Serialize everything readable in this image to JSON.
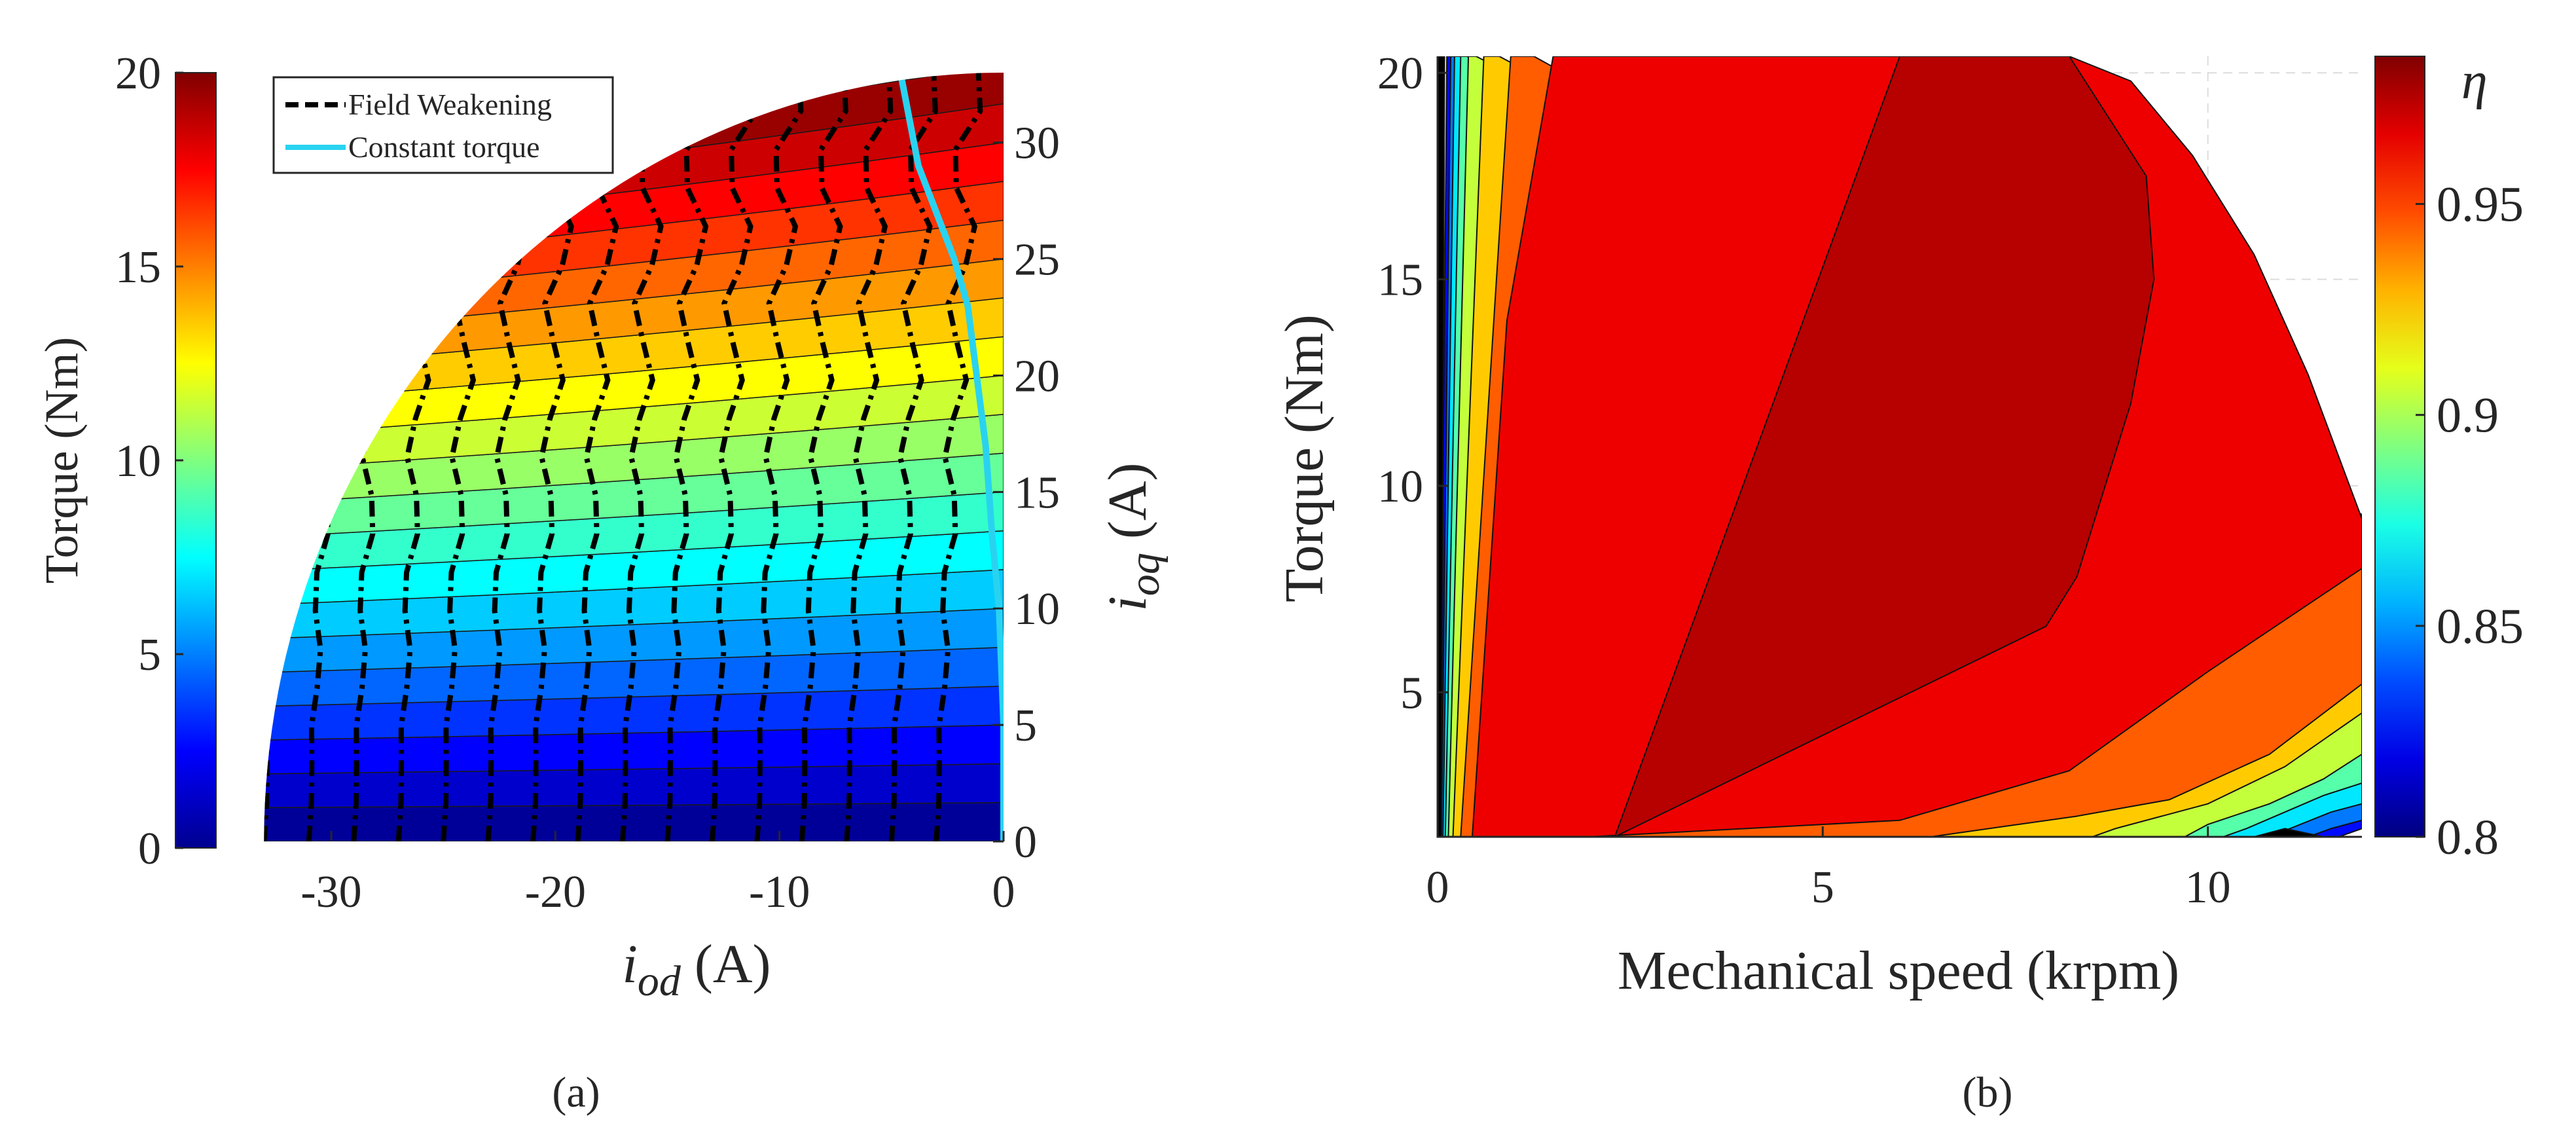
{
  "chart_data": [
    {
      "panel_label": "(a)",
      "type": "contour",
      "description_role": "iso-torque map in id-iq current plane",
      "xlabel_main": "i",
      "xlabel_sub": "od",
      "xlabel_unit": " (A)",
      "x_ticks": [
        "-30",
        "-20",
        "-10",
        "0"
      ],
      "x_tick_values": [
        -30,
        -20,
        -10,
        0
      ],
      "xlim": [
        -34.5,
        0
      ],
      "right_ylabel_main": "i",
      "right_ylabel_sub": "oq",
      "right_ylabel_unit": " (A)",
      "right_y_ticks": [
        "0",
        "5",
        "10",
        "15",
        "20",
        "25",
        "30"
      ],
      "right_y_tick_values": [
        0,
        5,
        10,
        15,
        20,
        25,
        30
      ],
      "ylim": [
        0,
        33
      ],
      "current_limit_A": 33,
      "colorbar_label": "Torque (Nm)",
      "colorbar_ticks": [
        "0",
        "5",
        "10",
        "15",
        "20"
      ],
      "colorbar_tick_values": [
        0,
        5,
        10,
        15,
        20
      ],
      "colorbar_range": [
        0,
        20
      ],
      "contour_levels": [
        0,
        1,
        2,
        3,
        4,
        5,
        6,
        7,
        8,
        9,
        10,
        11,
        12,
        13,
        14,
        15,
        16,
        17,
        18,
        19,
        20
      ],
      "torque_per_amp_q": 0.6,
      "legend": [
        {
          "label": "Field Weakening",
          "style": "dashed-black"
        },
        {
          "label": "Constant torque",
          "style": "solid-cyan"
        }
      ],
      "field_weakening_id_positions": [
        -33,
        -31,
        -29,
        -27,
        -25,
        -23,
        -21,
        -19,
        -17,
        -15,
        -13,
        -11,
        -9,
        -7,
        -5,
        -3
      ],
      "constant_torque_curve": {
        "id": [
          0,
          0,
          -0.2,
          -0.5,
          -0.8,
          -1.2,
          -1.6,
          -2.2,
          -3.0,
          -3.8,
          -4.6
        ],
        "iq": [
          0,
          5,
          10,
          13,
          17,
          20,
          23,
          25,
          27,
          29,
          33
        ]
      }
    },
    {
      "panel_label": "(b)",
      "type": "contour",
      "description_role": "efficiency map",
      "xlabel": "Mechanical speed (krpm)",
      "ylabel": "Torque (Nm)",
      "x_ticks": [
        "0",
        "5",
        "10"
      ],
      "x_tick_values": [
        0,
        5,
        10
      ],
      "xlim": [
        0,
        12
      ],
      "y_ticks": [
        "5",
        "10",
        "15",
        "20"
      ],
      "y_tick_values": [
        5,
        10,
        15,
        20
      ],
      "ylim": [
        1.5,
        20.4
      ],
      "colorbar_label": "η",
      "colorbar_ticks": [
        "0.8",
        "0.85",
        "0.9",
        "0.95"
      ],
      "colorbar_tick_values": [
        0.8,
        0.85,
        0.9,
        0.95
      ],
      "colorbar_range": [
        0.8,
        0.985
      ],
      "max_torque_envelope": {
        "speed_krpm": [
          0,
          6,
          8.2,
          9.0,
          9.8,
          10.6,
          11.3,
          12.0
        ],
        "torque_Nm": [
          20.4,
          20.4,
          20.4,
          19.8,
          18.0,
          15.6,
          12.7,
          9.2
        ]
      },
      "regions": [
        {
          "eta": 0.975,
          "speed_krpm": [
            2.3,
            6.0,
            8.2,
            9.2,
            9.3,
            9.0,
            8.3,
            7.9,
            2.3
          ],
          "torque_Nm": [
            1.5,
            20.4,
            20.4,
            17.5,
            15.0,
            12.0,
            7.8,
            6.6,
            1.5
          ]
        },
        {
          "eta": 0.965,
          "speed_krpm": [
            0.45,
            0.9,
            1.5,
            2.5,
            5.0,
            8.0,
            8.2,
            9.0,
            9.8,
            10.6,
            11.3,
            12.0,
            12.0,
            10.0,
            8.2,
            6.0,
            4.0,
            1.95,
            0.45
          ],
          "torque_Nm": [
            1.5,
            14.0,
            20.4,
            20.4,
            20.4,
            20.4,
            20.4,
            19.8,
            18.0,
            15.6,
            12.7,
            9.2,
            8.0,
            5.5,
            3.1,
            1.9,
            1.7,
            1.5,
            1.5
          ]
        },
        {
          "eta": 0.945,
          "speed_krpm": [
            0.3,
            0.95,
            1.25,
            12.0,
            12.0,
            10.8,
            9.5,
            8.3,
            6.4,
            0.3
          ],
          "torque_Nm": [
            1.5,
            20.4,
            20.4,
            9.3,
            5.2,
            3.5,
            2.4,
            2.0,
            1.5,
            1.5
          ]
        },
        {
          "eta": 0.925,
          "speed_krpm": [
            0.2,
            0.6,
            0.8,
            12.0,
            12.0,
            11.0,
            10.0,
            8.8,
            8.5,
            0.2
          ],
          "torque_Nm": [
            1.5,
            20.4,
            20.4,
            9.3,
            4.5,
            3.2,
            2.3,
            1.7,
            1.5,
            1.5
          ]
        },
        {
          "eta": 0.905,
          "speed_krpm": [
            0.14,
            0.4,
            0.5,
            12.0,
            12.0,
            11.5,
            10.8,
            10.0,
            9.7,
            0.14
          ],
          "torque_Nm": [
            1.5,
            20.4,
            20.4,
            9.3,
            3.5,
            2.9,
            2.3,
            1.8,
            1.5,
            1.5
          ]
        },
        {
          "eta": 0.885,
          "speed_krpm": [
            0.1,
            0.3,
            0.38,
            12.0,
            12.0,
            11.5,
            11.0,
            10.5,
            10.2,
            0.1
          ],
          "torque_Nm": [
            1.5,
            20.4,
            20.4,
            9.3,
            2.8,
            2.5,
            2.1,
            1.7,
            1.5,
            1.5
          ]
        },
        {
          "eta": 0.865,
          "speed_krpm": [
            0.07,
            0.22,
            0.3,
            12.0,
            12.0,
            11.6,
            11.2,
            10.8,
            0.07
          ],
          "torque_Nm": [
            1.5,
            20.4,
            20.4,
            9.3,
            2.3,
            2.1,
            1.8,
            1.5,
            1.5
          ]
        },
        {
          "eta": 0.845,
          "speed_krpm": [
            0.05,
            0.17,
            0.22,
            12.0,
            12.0,
            11.6,
            11.3,
            0.05
          ],
          "torque_Nm": [
            1.5,
            20.4,
            20.4,
            9.3,
            1.9,
            1.7,
            1.5,
            1.5
          ]
        },
        {
          "eta": 0.825,
          "speed_krpm": [
            0.03,
            0.12,
            0.16,
            12.0,
            12.0,
            11.7,
            0.03
          ],
          "torque_Nm": [
            1.5,
            20.4,
            20.4,
            9.3,
            1.7,
            1.5,
            1.5
          ]
        },
        {
          "eta": 0.8,
          "speed_krpm": [
            0.0,
            0.0,
            0.09,
            0.05,
            0.0
          ],
          "torque_Nm": [
            1.5,
            20.4,
            20.4,
            1.5,
            1.5
          ]
        },
        {
          "eta": 0.8,
          "speed_krpm": [
            10.6,
            11.0,
            11.5,
            11.1,
            10.6
          ],
          "torque_Nm": [
            1.5,
            1.7,
            1.5,
            1.5,
            1.5
          ]
        }
      ]
    }
  ]
}
